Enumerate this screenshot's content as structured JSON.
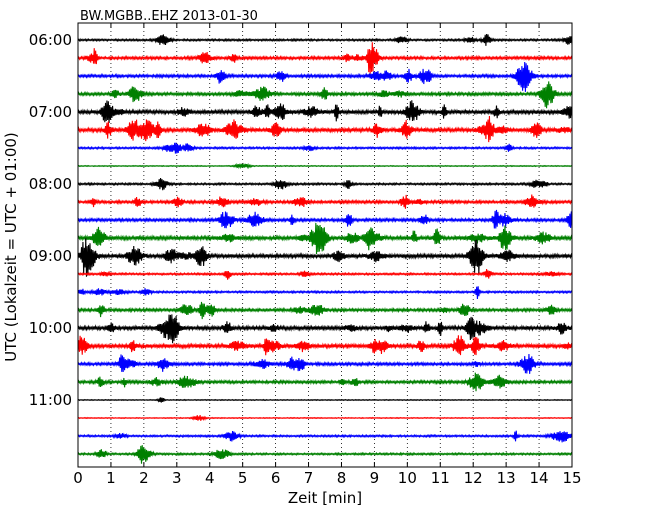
{
  "chart_data": {
    "type": "line",
    "title": "BW.MGBB..EHZ 2013-01-30",
    "xlabel": "Zeit  [min]",
    "ylabel": "UTC (Lokalzeit = UTC + 01:00)",
    "xlim": [
      0,
      15
    ],
    "x_ticks": [
      "0",
      "1",
      "2",
      "3",
      "4",
      "5",
      "6",
      "7",
      "8",
      "9",
      "10",
      "11",
      "12",
      "13",
      "14",
      "15"
    ],
    "y_ticks": [
      "06:00",
      "07:00",
      "08:00",
      "09:00",
      "10:00",
      "11:00"
    ],
    "grid": "vertical dotted",
    "line_colors": [
      "#000000",
      "#ff0000",
      "#0000ff",
      "#008000"
    ],
    "traces": [
      {
        "start": "06:00",
        "color": "#000000",
        "activity": 1
      },
      {
        "start": "06:15",
        "color": "#ff0000",
        "activity": 2
      },
      {
        "start": "06:30",
        "color": "#0000ff",
        "activity": 2
      },
      {
        "start": "06:45",
        "color": "#008000",
        "activity": 2
      },
      {
        "start": "07:00",
        "color": "#000000",
        "activity": 3
      },
      {
        "start": "07:15",
        "color": "#ff0000",
        "activity": 3
      },
      {
        "start": "07:30",
        "color": "#0000ff",
        "activity": 1
      },
      {
        "start": "07:45",
        "color": "#008000",
        "activity": 0
      },
      {
        "start": "08:00",
        "color": "#000000",
        "activity": 1
      },
      {
        "start": "08:15",
        "color": "#ff0000",
        "activity": 2
      },
      {
        "start": "08:30",
        "color": "#0000ff",
        "activity": 2
      },
      {
        "start": "08:45",
        "color": "#008000",
        "activity": 3
      },
      {
        "start": "09:00",
        "color": "#000000",
        "activity": 3
      },
      {
        "start": "09:15",
        "color": "#ff0000",
        "activity": 1
      },
      {
        "start": "09:30",
        "color": "#0000ff",
        "activity": 1
      },
      {
        "start": "09:45",
        "color": "#008000",
        "activity": 2
      },
      {
        "start": "10:00",
        "color": "#000000",
        "activity": 3
      },
      {
        "start": "10:15",
        "color": "#ff0000",
        "activity": 3
      },
      {
        "start": "10:30",
        "color": "#0000ff",
        "activity": 2
      },
      {
        "start": "10:45",
        "color": "#008000",
        "activity": 2
      },
      {
        "start": "11:00",
        "color": "#000000",
        "activity": 0
      },
      {
        "start": "11:15",
        "color": "#ff0000",
        "activity": 0
      },
      {
        "start": "11:30",
        "color": "#0000ff",
        "activity": 1
      },
      {
        "start": "11:45",
        "color": "#008000",
        "activity": 1
      }
    ]
  }
}
